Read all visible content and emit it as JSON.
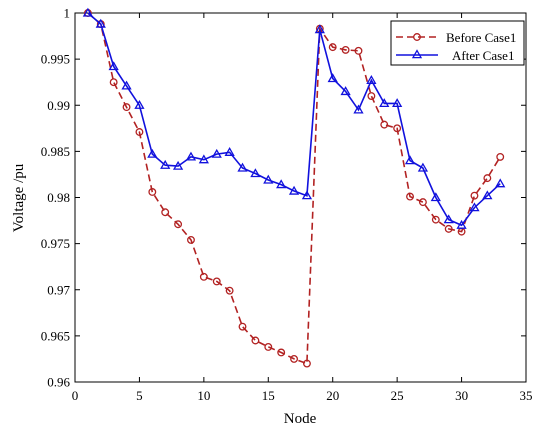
{
  "chart_data": {
    "type": "line",
    "title": "",
    "xlabel": "Node",
    "ylabel": "Voltage /pu",
    "xlim": [
      0,
      35
    ],
    "ylim": [
      0.96,
      1.0
    ],
    "xticks": [
      0,
      5,
      10,
      15,
      20,
      25,
      30,
      35
    ],
    "yticks": [
      0.96,
      0.965,
      0.97,
      0.975,
      0.98,
      0.985,
      0.99,
      0.995,
      1.0
    ],
    "xtick_labels": [
      "0",
      "5",
      "10",
      "15",
      "20",
      "25",
      "30",
      "35"
    ],
    "ytick_labels": [
      "0.96",
      "0.965",
      "0.97",
      "0.975",
      "0.98",
      "0.985",
      "0.99",
      "0.995",
      "1"
    ],
    "grid": false,
    "legend_position": "top-right",
    "series": [
      {
        "name": "Before Case1",
        "color": "#b22222",
        "line_style": "dashed",
        "marker": "circle",
        "x": [
          1,
          2,
          3,
          4,
          5,
          6,
          7,
          8,
          9,
          10,
          11,
          12,
          13,
          14,
          15,
          16,
          17,
          18,
          19,
          20,
          21,
          22,
          23,
          24,
          25,
          26,
          27,
          28,
          29,
          30,
          31,
          32,
          33
        ],
        "values": [
          1.0,
          0.9988,
          0.9925,
          0.9898,
          0.9871,
          0.9806,
          0.9784,
          0.9771,
          0.9754,
          0.9714,
          0.9709,
          0.9699,
          0.966,
          0.9645,
          0.9638,
          0.9632,
          0.9625,
          0.962,
          0.9983,
          0.9963,
          0.996,
          0.9959,
          0.991,
          0.9879,
          0.9875,
          0.9801,
          0.9795,
          0.9776,
          0.9766,
          0.9763,
          0.9802,
          0.9821,
          0.9844
        ]
      },
      {
        "name": "After Case1",
        "color": "#1111dd",
        "line_style": "solid",
        "marker": "triangle",
        "x": [
          1,
          2,
          3,
          4,
          5,
          6,
          7,
          8,
          9,
          10,
          11,
          12,
          13,
          14,
          15,
          16,
          17,
          18,
          19,
          20,
          21,
          22,
          23,
          24,
          25,
          26,
          27,
          28,
          29,
          30,
          31,
          32,
          33
        ],
        "values": [
          1.0,
          0.9988,
          0.9942,
          0.9921,
          0.99,
          0.9847,
          0.9835,
          0.9834,
          0.9844,
          0.9841,
          0.9847,
          0.9849,
          0.9832,
          0.9826,
          0.9819,
          0.9814,
          0.9807,
          0.9802,
          0.9982,
          0.9929,
          0.9915,
          0.9895,
          0.9927,
          0.9902,
          0.9902,
          0.984,
          0.9832,
          0.98,
          0.9776,
          0.977,
          0.9789,
          0.9802,
          0.9815
        ]
      }
    ]
  }
}
